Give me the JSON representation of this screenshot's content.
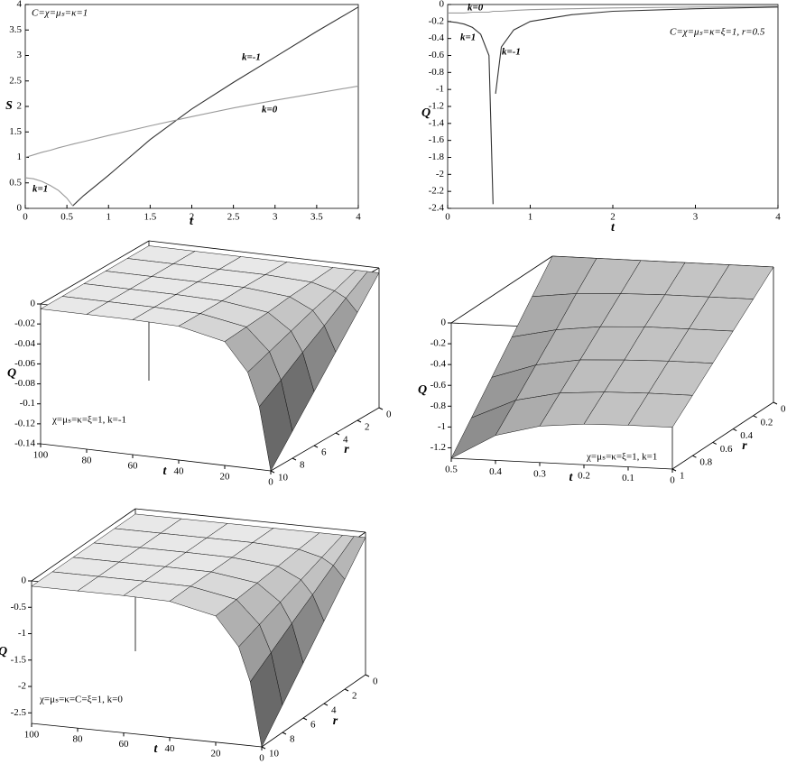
{
  "chart_data": [
    {
      "type": "line",
      "annotation": "C=χ=μₛ=κ=1",
      "xlabel": "t",
      "ylabel": "S",
      "x": [
        0,
        0.1,
        0.2,
        0.3,
        0.4,
        0.5,
        0.57,
        0.7,
        1,
        1.5,
        2,
        2.5,
        3,
        3.5,
        4
      ],
      "series": [
        {
          "name": "k=-1",
          "color": "#333333",
          "values": [
            null,
            null,
            null,
            null,
            null,
            null,
            0.05,
            0.25,
            0.65,
            1.35,
            1.95,
            2.47,
            2.97,
            3.47,
            3.95
          ]
        },
        {
          "name": "k=0",
          "color": "#999999",
          "values": [
            1,
            1.05,
            1.1,
            1.14,
            1.19,
            1.23,
            1.26,
            1.31,
            1.43,
            1.62,
            1.8,
            1.97,
            2.12,
            2.26,
            2.4
          ]
        },
        {
          "name": "k=1",
          "color": "#999999",
          "values": [
            0.6,
            0.58,
            0.53,
            0.45,
            0.35,
            0.2,
            0.05,
            null,
            null,
            null,
            null,
            null,
            null,
            null,
            null
          ]
        }
      ],
      "xlim": [
        0,
        4
      ],
      "ylim": [
        0,
        4
      ],
      "xticks": [
        0,
        0.5,
        1,
        1.5,
        2,
        2.5,
        3,
        3.5,
        4
      ],
      "yticks": [
        0,
        0.5,
        1,
        1.5,
        2,
        2.5,
        3,
        3.5,
        4
      ]
    },
    {
      "type": "line",
      "annotation": "C=χ=μₛ=κ=ξ=1, r=0.5",
      "xlabel": "t",
      "ylabel": "Q",
      "x": [
        0,
        0.1,
        0.2,
        0.3,
        0.4,
        0.5,
        0.55,
        0.58,
        0.65,
        0.8,
        1,
        1.5,
        2,
        3,
        4
      ],
      "series": [
        {
          "name": "k=0",
          "color": "#999999",
          "values": [
            -0.1,
            -0.1,
            -0.1,
            -0.09,
            -0.09,
            -0.09,
            -0.08,
            -0.08,
            -0.08,
            -0.07,
            -0.06,
            -0.05,
            -0.04,
            -0.03,
            -0.02
          ]
        },
        {
          "name": "k=1",
          "color": "#333333",
          "values": [
            -0.2,
            -0.21,
            -0.23,
            -0.27,
            -0.35,
            -0.6,
            -2.35,
            null,
            null,
            null,
            null,
            null,
            null,
            null,
            null
          ]
        },
        {
          "name": "k=-1",
          "color": "#333333",
          "values": [
            null,
            null,
            null,
            null,
            null,
            null,
            null,
            -1.05,
            -0.5,
            -0.3,
            -0.2,
            -0.12,
            -0.08,
            -0.05,
            -0.03
          ]
        }
      ],
      "xlim": [
        0,
        4
      ],
      "ylim": [
        -2.4,
        0
      ],
      "xticks": [
        0,
        1,
        2,
        3,
        4
      ],
      "yticks": [
        0,
        -0.2,
        -0.4,
        -0.6,
        -0.8,
        -1,
        -1.2,
        -1.4,
        -1.6,
        -1.8,
        -2,
        -2.2,
        -2.4
      ]
    },
    {
      "type": "surface",
      "annotation": "χ=μₛ=κ=ξ=1, k=-1",
      "xlabel": "t",
      "ylabel": "r",
      "zlabel": "Q",
      "x": [
        0,
        5,
        10,
        20,
        40,
        60,
        80,
        100
      ],
      "y": [
        0,
        2,
        4,
        6,
        8,
        10
      ],
      "values": [
        [
          -0.005,
          -0.032,
          -0.059,
          -0.086,
          -0.113,
          -0.14
        ],
        [
          -0.005,
          -0.019,
          -0.034,
          -0.048,
          -0.063,
          -0.077
        ],
        [
          -0.005,
          -0.013,
          -0.02,
          -0.028,
          -0.036,
          -0.044
        ],
        [
          -0.005,
          -0.007,
          -0.009,
          -0.012,
          -0.014,
          -0.016
        ],
        [
          -0.005,
          -0.005,
          -0.005,
          -0.006,
          -0.006,
          -0.006
        ],
        [
          -0.005,
          -0.005,
          -0.005,
          -0.005,
          -0.005,
          -0.005
        ],
        [
          -0.005,
          -0.005,
          -0.005,
          -0.005,
          -0.005,
          -0.005
        ],
        [
          -0.005,
          -0.005,
          -0.005,
          -0.005,
          -0.005,
          -0.005
        ]
      ],
      "xlim": [
        0,
        100
      ],
      "ylim": [
        0,
        10
      ],
      "zlim": [
        -0.14,
        0
      ],
      "xticks": [
        0,
        20,
        40,
        60,
        80,
        100
      ],
      "yticks": [
        0,
        2,
        4,
        6,
        8,
        10
      ],
      "zticks": [
        0,
        -0.02,
        -0.04,
        -0.06,
        -0.08,
        -0.1,
        -0.12,
        -0.14
      ]
    },
    {
      "type": "surface",
      "annotation": "χ=μₛ=κ=ξ=1, k=1",
      "xlabel": "t",
      "ylabel": "r",
      "zlabel": "Q",
      "x": [
        0,
        0.1,
        0.2,
        0.3,
        0.4,
        0.5
      ],
      "y": [
        0,
        0.2,
        0.4,
        0.6,
        0.8,
        1
      ],
      "values": [
        [
          0,
          -0.18,
          -0.36,
          -0.54,
          -0.72,
          -0.9
        ],
        [
          0,
          -0.18,
          -0.36,
          -0.54,
          -0.72,
          -0.9
        ],
        [
          0,
          -0.18,
          -0.36,
          -0.55,
          -0.73,
          -0.91
        ],
        [
          0,
          -0.19,
          -0.38,
          -0.57,
          -0.76,
          -0.95
        ],
        [
          0,
          -0.21,
          -0.43,
          -0.64,
          -0.85,
          -1.06
        ],
        [
          0,
          -0.26,
          -0.52,
          -0.78,
          -1.04,
          -1.3
        ]
      ],
      "xlim": [
        0,
        0.5
      ],
      "ylim": [
        0,
        1
      ],
      "zlim": [
        -1.3,
        0
      ],
      "xticks": [
        0,
        0.1,
        0.2,
        0.3,
        0.4,
        0.5
      ],
      "yticks": [
        0,
        0.2,
        0.4,
        0.6,
        0.8,
        1
      ],
      "zticks": [
        0,
        -0.2,
        -0.4,
        -0.6,
        -0.8,
        -1,
        -1.2
      ]
    },
    {
      "type": "surface",
      "annotation": "χ=μₛ=κ=C=ξ=1, k=0",
      "xlabel": "t",
      "ylabel": "r",
      "zlabel": "Q",
      "x": [
        0,
        5,
        10,
        20,
        40,
        60,
        80,
        100
      ],
      "y": [
        0,
        2,
        4,
        6,
        8,
        10
      ],
      "values": [
        [
          -0.1,
          -0.62,
          -1.14,
          -1.66,
          -2.18,
          -2.7
        ],
        [
          -0.1,
          -0.38,
          -0.66,
          -0.93,
          -1.21,
          -1.49
        ],
        [
          -0.1,
          -0.25,
          -0.4,
          -0.55,
          -0.7,
          -0.85
        ],
        [
          -0.1,
          -0.14,
          -0.19,
          -0.23,
          -0.27,
          -0.31
        ],
        [
          -0.1,
          -0.1,
          -0.11,
          -0.11,
          -0.11,
          -0.12
        ],
        [
          -0.1,
          -0.1,
          -0.1,
          -0.1,
          -0.1,
          -0.1
        ],
        [
          -0.1,
          -0.1,
          -0.1,
          -0.1,
          -0.1,
          -0.1
        ],
        [
          -0.1,
          -0.1,
          -0.1,
          -0.1,
          -0.1,
          -0.1
        ]
      ],
      "xlim": [
        0,
        100
      ],
      "ylim": [
        0,
        10
      ],
      "zlim": [
        -2.7,
        0
      ],
      "xticks": [
        0,
        20,
        40,
        60,
        80,
        100
      ],
      "yticks": [
        0,
        2,
        4,
        6,
        8,
        10
      ],
      "zticks": [
        0,
        -0.5,
        -1,
        -1.5,
        -2,
        -2.5
      ]
    }
  ]
}
